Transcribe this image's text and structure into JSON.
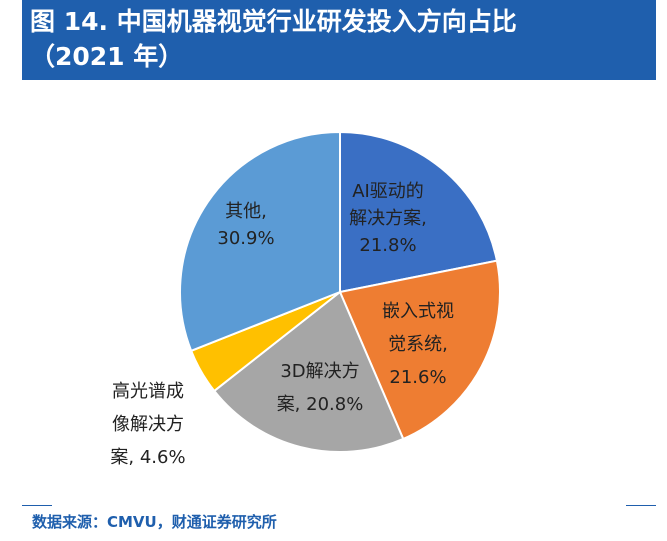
{
  "header": {
    "title_line1": "图 14.  中国机器视觉行业研发投入方向占比",
    "title_line2": "（2021 年）"
  },
  "chart_data": {
    "type": "pie",
    "title": "图 14.  中国机器视觉行业研发投入方向占比（2021 年）",
    "slices": [
      {
        "label": "AI驱动的解决方案",
        "value": 21.8,
        "color": "#3a6fc4",
        "label_lines": [
          "AI驱动的",
          "解决方案,",
          "21.8%"
        ]
      },
      {
        "label": "嵌入式视觉系统",
        "value": 21.6,
        "color": "#ee7d32",
        "label_lines": [
          "嵌入式视",
          "觉系统,",
          "21.6%"
        ]
      },
      {
        "label": "3D解决方案",
        "value": 20.8,
        "color": "#a6a6a6",
        "label_lines": [
          "3D解决方",
          "案, 20.8%"
        ]
      },
      {
        "label": "高光谱成像解决方案",
        "value": 4.6,
        "color": "#ffc000",
        "label_lines": [
          "高光谱成",
          "像解决方",
          "案, 4.6%"
        ]
      },
      {
        "label": "其他",
        "value": 30.9,
        "color": "#5b9bd5",
        "label_lines": [
          "其他,",
          "30.9%"
        ]
      }
    ]
  },
  "footer": {
    "source": "数据来源：CMVU，财通证券研究所"
  }
}
